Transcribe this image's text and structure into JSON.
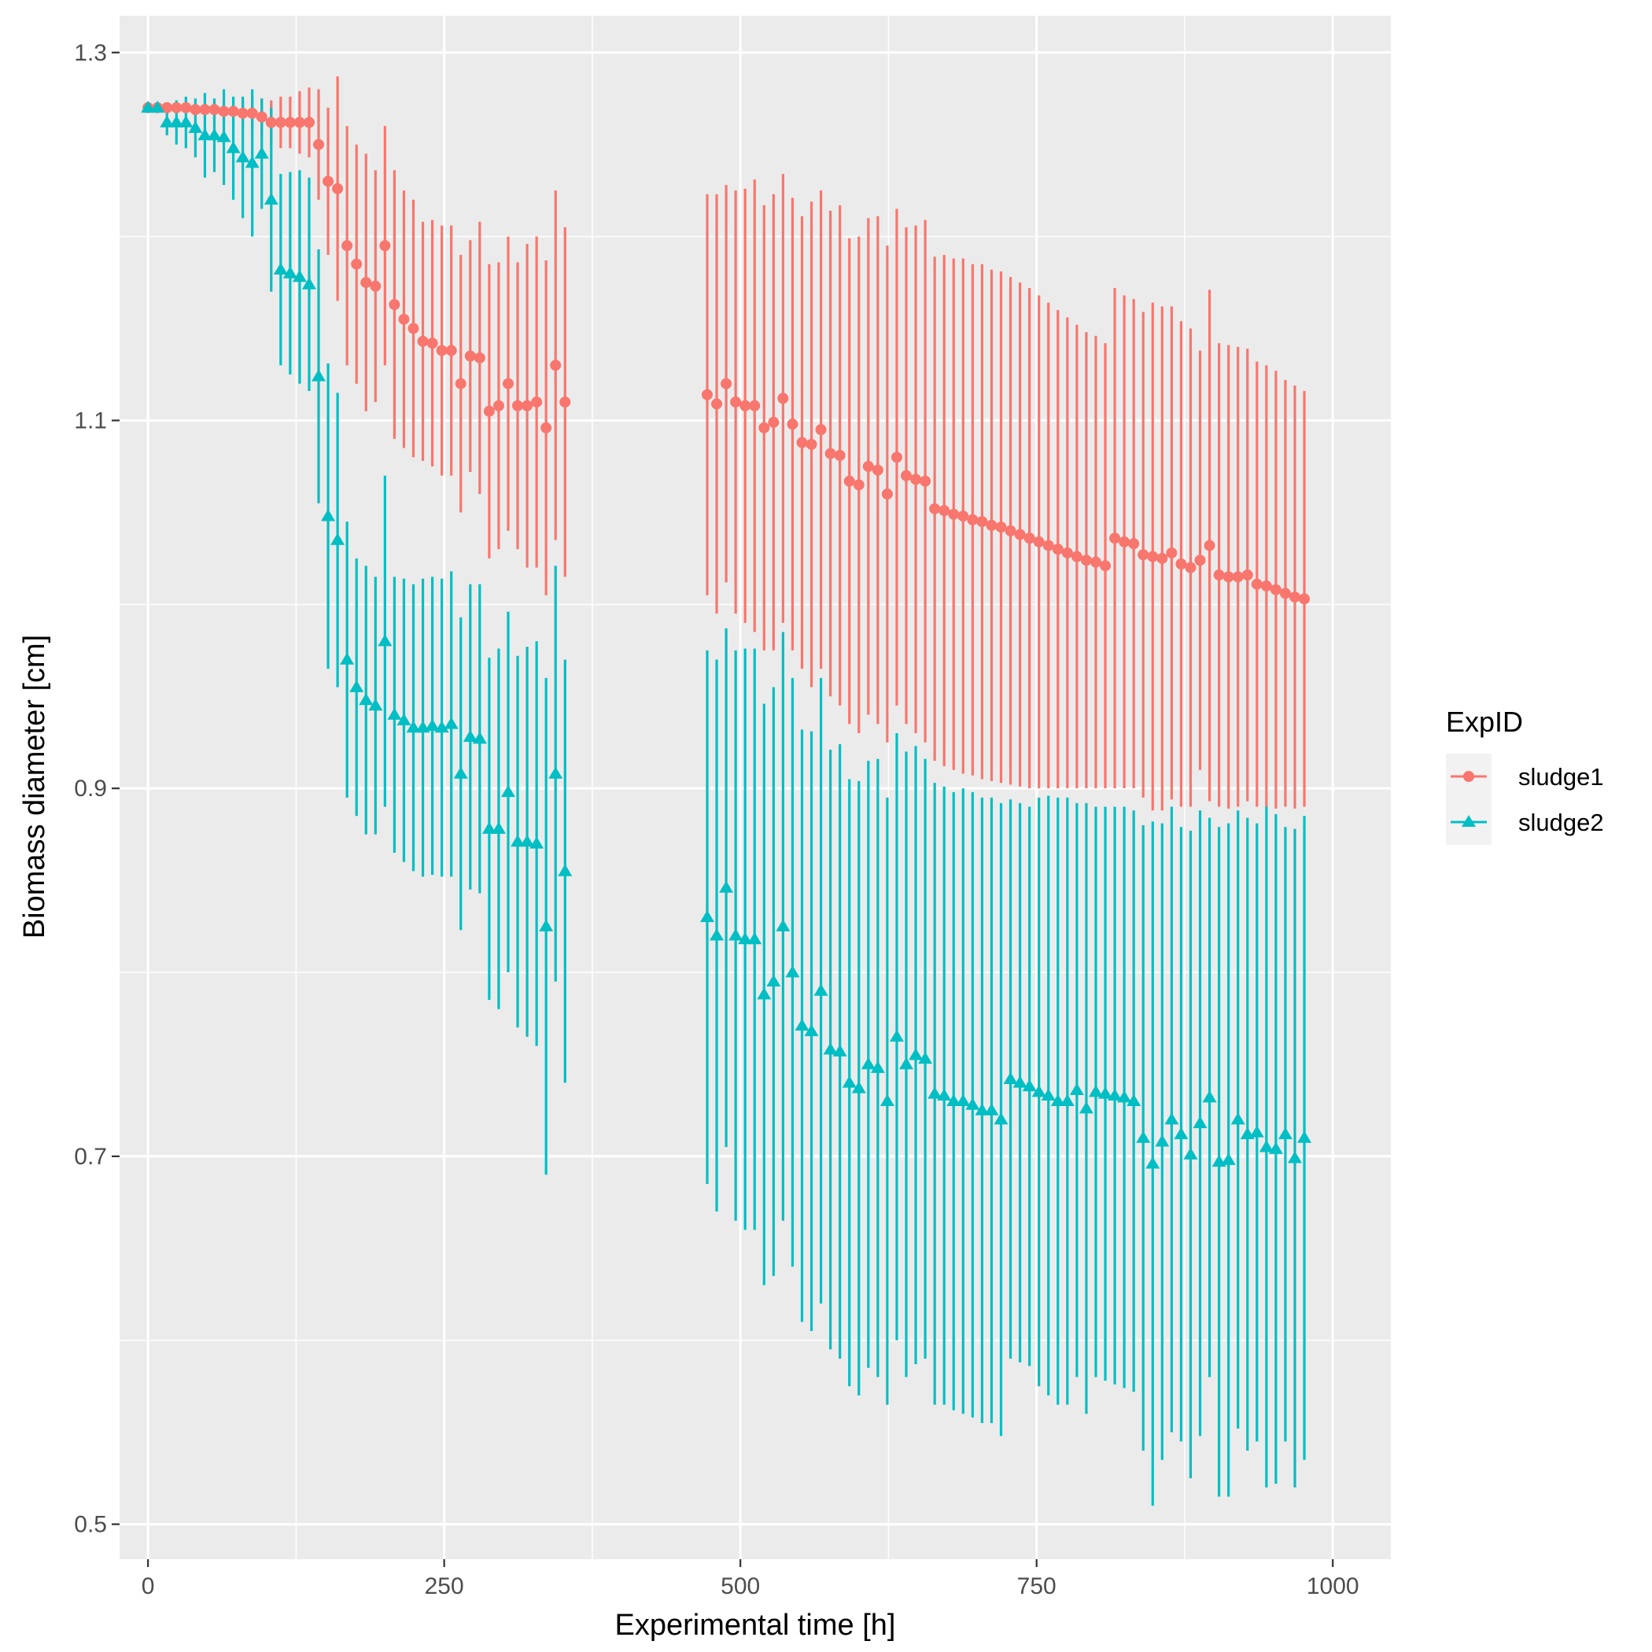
{
  "chart_data": {
    "type": "scatter",
    "title": "",
    "xlabel": "Experimental time [h]",
    "ylabel": "Biomass diameter [cm]",
    "xlim": [
      -24,
      1049
    ],
    "ylim": [
      0.481,
      1.32
    ],
    "x_ticks": [
      0,
      250,
      500,
      750,
      1000
    ],
    "x_tick_labels": [
      "0",
      "250",
      "500",
      "750",
      "1000"
    ],
    "y_ticks": [
      0.5,
      0.7,
      0.9,
      1.1,
      1.3
    ],
    "y_tick_labels": [
      "0.5",
      "0.7",
      "0.9",
      "1.1",
      "1.3"
    ],
    "grid": true,
    "error_bars": true,
    "legend": {
      "title": "ExpID",
      "position": "right"
    },
    "series": [
      {
        "name": "sludge1",
        "color": "#F8766D",
        "marker": "circle",
        "x": [
          0,
          8,
          16,
          24,
          32,
          40,
          48,
          56,
          64,
          72,
          80,
          88,
          96,
          104,
          112,
          120,
          128,
          136,
          144,
          152,
          160,
          168,
          176,
          184,
          192,
          200,
          208,
          216,
          224,
          232,
          240,
          248,
          256,
          264,
          272,
          280,
          288,
          296,
          304,
          312,
          320,
          328,
          336,
          344,
          352,
          472,
          480,
          488,
          496,
          504,
          512,
          520,
          528,
          536,
          544,
          552,
          560,
          568,
          576,
          584,
          592,
          600,
          608,
          616,
          624,
          632,
          640,
          648,
          656,
          664,
          672,
          680,
          688,
          696,
          704,
          712,
          720,
          728,
          736,
          744,
          752,
          760,
          768,
          776,
          784,
          792,
          800,
          808,
          816,
          824,
          832,
          840,
          848,
          856,
          864,
          872,
          880,
          888,
          896,
          904,
          912,
          920,
          928,
          936,
          944,
          952,
          960,
          968,
          976
        ],
        "y": [
          1.27,
          1.27,
          1.27,
          1.27,
          1.27,
          1.269,
          1.269,
          1.269,
          1.268,
          1.268,
          1.267,
          1.267,
          1.265,
          1.262,
          1.262,
          1.262,
          1.262,
          1.262,
          1.25,
          1.23,
          1.226,
          1.195,
          1.185,
          1.175,
          1.173,
          1.195,
          1.163,
          1.155,
          1.15,
          1.143,
          1.142,
          1.138,
          1.138,
          1.12,
          1.135,
          1.134,
          1.105,
          1.108,
          1.12,
          1.108,
          1.108,
          1.11,
          1.096,
          1.13,
          1.11,
          1.114,
          1.109,
          1.12,
          1.11,
          1.108,
          1.108,
          1.096,
          1.099,
          1.112,
          1.098,
          1.088,
          1.087,
          1.095,
          1.082,
          1.081,
          1.067,
          1.065,
          1.075,
          1.073,
          1.06,
          1.08,
          1.07,
          1.068,
          1.067,
          1.052,
          1.051,
          1.049,
          1.048,
          1.046,
          1.045,
          1.043,
          1.042,
          1.04,
          1.038,
          1.036,
          1.034,
          1.032,
          1.03,
          1.028,
          1.026,
          1.024,
          1.023,
          1.021,
          1.036,
          1.034,
          1.033,
          1.027,
          1.026,
          1.025,
          1.028,
          1.022,
          1.02,
          1.024,
          1.032,
          1.016,
          1.015,
          1.015,
          1.016,
          1.011,
          1.01,
          1.008,
          1.006,
          1.004,
          1.003
        ],
        "ymin": [
          1.27,
          1.27,
          1.27,
          1.268,
          1.268,
          1.266,
          1.265,
          1.264,
          1.262,
          1.262,
          1.26,
          1.258,
          1.255,
          1.25,
          1.248,
          1.248,
          1.245,
          1.243,
          1.22,
          1.19,
          1.165,
          1.13,
          1.12,
          1.105,
          1.11,
          1.13,
          1.09,
          1.085,
          1.08,
          1.078,
          1.075,
          1.07,
          1.07,
          1.05,
          1.072,
          1.06,
          1.025,
          1.03,
          1.04,
          1.03,
          1.02,
          1.02,
          1.005,
          1.035,
          1.015,
          1.005,
          0.995,
          1.012,
          0.995,
          0.99,
          0.985,
          0.975,
          0.975,
          0.99,
          0.975,
          0.965,
          0.955,
          0.965,
          0.95,
          0.945,
          0.935,
          0.93,
          0.94,
          0.935,
          0.925,
          0.945,
          0.935,
          0.93,
          0.925,
          0.915,
          0.912,
          0.91,
          0.908,
          0.907,
          0.905,
          0.904,
          0.903,
          0.902,
          0.901,
          0.9,
          0.9,
          0.9,
          0.9,
          0.9,
          0.9,
          0.9,
          0.9,
          0.9,
          0.9,
          0.9,
          0.9,
          0.895,
          0.888,
          0.888,
          0.894,
          0.89,
          0.89,
          0.91,
          0.893,
          0.89,
          0.889,
          0.89,
          0.893,
          0.89,
          0.89,
          0.889,
          0.89,
          0.889,
          0.89
        ],
        "ymax": [
          1.27,
          1.27,
          1.27,
          1.272,
          1.272,
          1.272,
          1.273,
          1.274,
          1.274,
          1.274,
          1.274,
          1.276,
          1.275,
          1.274,
          1.276,
          1.276,
          1.279,
          1.281,
          1.28,
          1.27,
          1.287,
          1.26,
          1.25,
          1.245,
          1.236,
          1.26,
          1.236,
          1.225,
          1.22,
          1.208,
          1.209,
          1.206,
          1.206,
          1.19,
          1.198,
          1.208,
          1.185,
          1.186,
          1.2,
          1.186,
          1.196,
          1.2,
          1.187,
          1.225,
          1.205,
          1.223,
          1.223,
          1.228,
          1.225,
          1.226,
          1.231,
          1.217,
          1.223,
          1.234,
          1.221,
          1.211,
          1.219,
          1.225,
          1.214,
          1.217,
          1.199,
          1.2,
          1.21,
          1.211,
          1.195,
          1.215,
          1.205,
          1.206,
          1.209,
          1.189,
          1.19,
          1.188,
          1.188,
          1.185,
          1.185,
          1.182,
          1.181,
          1.178,
          1.175,
          1.172,
          1.168,
          1.164,
          1.16,
          1.156,
          1.152,
          1.148,
          1.146,
          1.142,
          1.172,
          1.168,
          1.166,
          1.159,
          1.164,
          1.162,
          1.162,
          1.154,
          1.15,
          1.138,
          1.171,
          1.142,
          1.141,
          1.14,
          1.139,
          1.132,
          1.13,
          1.127,
          1.122,
          1.119,
          1.116
        ]
      },
      {
        "name": "sludge2",
        "color": "#00BFC4",
        "marker": "triangle",
        "x": [
          0,
          8,
          16,
          24,
          32,
          40,
          48,
          56,
          64,
          72,
          80,
          88,
          96,
          104,
          112,
          120,
          128,
          136,
          144,
          152,
          160,
          168,
          176,
          184,
          192,
          200,
          208,
          216,
          224,
          232,
          240,
          248,
          256,
          264,
          272,
          280,
          288,
          296,
          304,
          312,
          320,
          328,
          336,
          344,
          352,
          472,
          480,
          488,
          496,
          504,
          512,
          520,
          528,
          536,
          544,
          552,
          560,
          568,
          576,
          584,
          592,
          600,
          608,
          616,
          624,
          632,
          640,
          648,
          656,
          664,
          672,
          680,
          688,
          696,
          704,
          712,
          720,
          728,
          736,
          744,
          752,
          760,
          768,
          776,
          784,
          792,
          800,
          808,
          816,
          824,
          832,
          840,
          848,
          856,
          864,
          872,
          880,
          888,
          896,
          904,
          912,
          920,
          928,
          936,
          944,
          952,
          960,
          968,
          976
        ],
        "y": [
          1.27,
          1.27,
          1.262,
          1.262,
          1.262,
          1.259,
          1.255,
          1.255,
          1.254,
          1.248,
          1.243,
          1.24,
          1.245,
          1.22,
          1.182,
          1.18,
          1.178,
          1.174,
          1.124,
          1.048,
          1.035,
          0.97,
          0.955,
          0.948,
          0.945,
          0.98,
          0.94,
          0.937,
          0.933,
          0.933,
          0.934,
          0.933,
          0.935,
          0.908,
          0.928,
          0.927,
          0.878,
          0.878,
          0.898,
          0.871,
          0.871,
          0.87,
          0.825,
          0.908,
          0.855,
          0.83,
          0.82,
          0.846,
          0.82,
          0.818,
          0.818,
          0.788,
          0.795,
          0.825,
          0.8,
          0.771,
          0.768,
          0.79,
          0.758,
          0.757,
          0.74,
          0.737,
          0.75,
          0.748,
          0.73,
          0.765,
          0.75,
          0.755,
          0.753,
          0.734,
          0.733,
          0.73,
          0.73,
          0.728,
          0.725,
          0.725,
          0.72,
          0.742,
          0.74,
          0.738,
          0.735,
          0.733,
          0.73,
          0.73,
          0.736,
          0.726,
          0.735,
          0.734,
          0.733,
          0.732,
          0.73,
          0.71,
          0.696,
          0.708,
          0.72,
          0.712,
          0.701,
          0.718,
          0.732,
          0.697,
          0.698,
          0.72,
          0.712,
          0.713,
          0.705,
          0.704,
          0.712,
          0.699,
          0.71
        ],
        "ymin": [
          1.27,
          1.268,
          1.255,
          1.25,
          1.248,
          1.243,
          1.232,
          1.235,
          1.228,
          1.22,
          1.21,
          1.2,
          1.215,
          1.17,
          1.13,
          1.125,
          1.12,
          1.116,
          1.055,
          0.965,
          0.955,
          0.895,
          0.885,
          0.875,
          0.875,
          0.89,
          0.865,
          0.86,
          0.855,
          0.852,
          0.853,
          0.852,
          0.852,
          0.823,
          0.845,
          0.843,
          0.785,
          0.78,
          0.8,
          0.77,
          0.765,
          0.76,
          0.69,
          0.795,
          0.74,
          0.685,
          0.67,
          0.705,
          0.665,
          0.66,
          0.66,
          0.63,
          0.635,
          0.665,
          0.64,
          0.61,
          0.605,
          0.62,
          0.595,
          0.59,
          0.575,
          0.57,
          0.585,
          0.58,
          0.565,
          0.6,
          0.58,
          0.587,
          0.59,
          0.565,
          0.565,
          0.562,
          0.56,
          0.558,
          0.555,
          0.555,
          0.548,
          0.59,
          0.588,
          0.586,
          0.575,
          0.57,
          0.565,
          0.565,
          0.58,
          0.56,
          0.58,
          0.578,
          0.576,
          0.574,
          0.572,
          0.54,
          0.51,
          0.535,
          0.55,
          0.545,
          0.525,
          0.548,
          0.58,
          0.515,
          0.515,
          0.552,
          0.54,
          0.545,
          0.52,
          0.522,
          0.545,
          0.52,
          0.535
        ],
        "ymax": [
          1.27,
          1.272,
          1.269,
          1.274,
          1.276,
          1.275,
          1.278,
          1.275,
          1.28,
          1.276,
          1.276,
          1.28,
          1.275,
          1.27,
          1.234,
          1.235,
          1.236,
          1.232,
          1.193,
          1.131,
          1.115,
          1.045,
          1.025,
          1.021,
          1.015,
          1.07,
          1.015,
          1.014,
          1.011,
          1.014,
          1.015,
          1.014,
          1.018,
          0.993,
          1.011,
          1.011,
          0.971,
          0.976,
          0.996,
          0.972,
          0.977,
          0.98,
          0.96,
          1.021,
          0.97,
          0.975,
          0.97,
          0.987,
          0.975,
          0.976,
          0.976,
          0.946,
          0.955,
          0.985,
          0.96,
          0.932,
          0.931,
          0.96,
          0.921,
          0.924,
          0.905,
          0.904,
          0.915,
          0.916,
          0.895,
          0.93,
          0.92,
          0.923,
          0.916,
          0.903,
          0.901,
          0.898,
          0.9,
          0.898,
          0.895,
          0.895,
          0.892,
          0.894,
          0.892,
          0.89,
          0.895,
          0.896,
          0.895,
          0.895,
          0.892,
          0.892,
          0.89,
          0.89,
          0.89,
          0.89,
          0.888,
          0.88,
          0.882,
          0.881,
          0.89,
          0.879,
          0.877,
          0.888,
          0.884,
          0.879,
          0.881,
          0.888,
          0.884,
          0.881,
          0.89,
          0.886,
          0.879,
          0.878,
          0.885
        ]
      }
    ]
  }
}
